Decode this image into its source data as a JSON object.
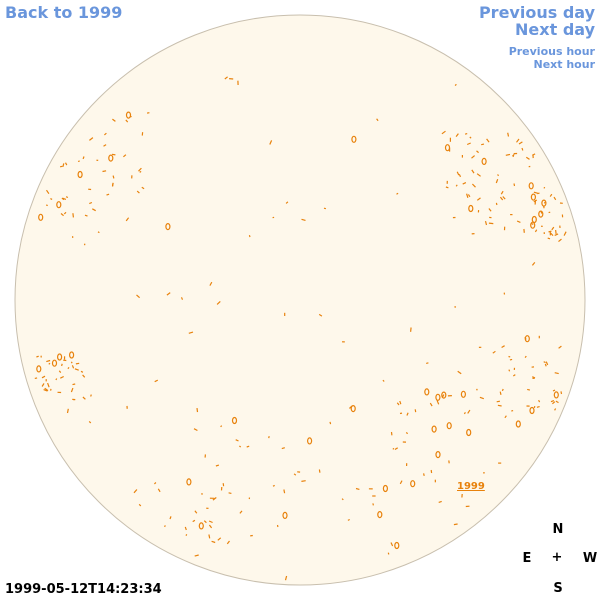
{
  "nav": {
    "back_label": "Back to 1999",
    "previous_day": "Previous day",
    "next_day": "Next day",
    "previous_hour": "Previous hour",
    "next_hour": "Next hour"
  },
  "timestamp": "1999-05-12T14:23:34",
  "compass": {
    "north": "N",
    "east": "E",
    "west": "W",
    "south": "S",
    "center": "+"
  },
  "region_label": "1999",
  "colors": {
    "disk_fill": "#fef8eb",
    "disk_stroke": "#c8bfae",
    "contour": "#e8820c",
    "link": "#6a96dc"
  }
}
